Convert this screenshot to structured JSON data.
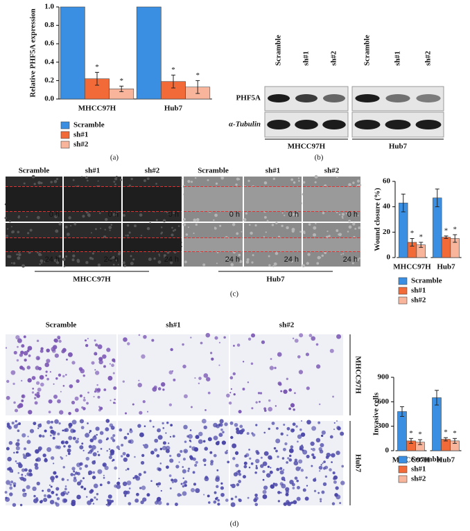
{
  "panel_labels": [
    "(a)",
    "(b)",
    "(c)",
    "(d)"
  ],
  "blot": {
    "rows": [
      "PHF5A",
      "α-Tubulin"
    ],
    "groups": [
      {
        "name": "MHCC97H",
        "lanes": [
          "Scramble",
          "sh#1",
          "sh#2"
        ]
      },
      {
        "name": "Hub7",
        "lanes": [
          "Scramble",
          "sh#1",
          "sh#2"
        ]
      }
    ]
  },
  "wound": {
    "times": [
      "0 h",
      "24 h"
    ],
    "groups": [
      {
        "name": "MHCC97H",
        "columns": [
          "Scramble",
          "sh#1",
          "sh#2"
        ]
      },
      {
        "name": "Hub7",
        "columns": [
          "Scramble",
          "sh#1",
          "sh#2"
        ]
      }
    ]
  },
  "invasion": {
    "columns": [
      "Scramble",
      "sh#1",
      "sh#2"
    ],
    "rows": [
      "MHCC97H",
      "Hub7"
    ]
  },
  "chart_data": [
    {
      "type": "bar",
      "y_label": "Relative PHF5A expression",
      "categories": [
        "MHCC97H",
        "Hub7"
      ],
      "series": [
        {
          "name": "Scramble",
          "color": "#3b8fe2",
          "values": [
            1.0,
            1.0
          ]
        },
        {
          "name": "sh#1",
          "color": "#f26a38",
          "values": [
            0.22,
            0.19
          ],
          "errors": [
            0.07,
            0.07
          ],
          "significance": [
            "*",
            "*"
          ]
        },
        {
          "name": "sh#2",
          "color": "#f8b59b",
          "values": [
            0.11,
            0.13
          ],
          "errors": [
            0.03,
            0.07
          ],
          "significance": [
            "*",
            "*"
          ]
        }
      ],
      "ylim": [
        0,
        1.0
      ],
      "yticks": [
        {
          "value": 0,
          "label": "0.0"
        },
        0.2,
        0.4,
        0.6,
        0.8,
        {
          "value": 1.0,
          "label": "1.0"
        }
      ]
    },
    {
      "type": "bar",
      "y_label": "Wound closure (%)",
      "categories": [
        "MHCC97H",
        "Hub7"
      ],
      "series": [
        {
          "name": "Scramble",
          "color": "#3b8fe2",
          "values": [
            43,
            47
          ],
          "errors": [
            7,
            7
          ]
        },
        {
          "name": "sh#1",
          "color": "#f26a38",
          "values": [
            12,
            16
          ],
          "errors": [
            3,
            1
          ],
          "significance": [
            "*",
            "*"
          ]
        },
        {
          "name": "sh#2",
          "color": "#f8b59b",
          "values": [
            10,
            15
          ],
          "errors": [
            2,
            3
          ],
          "significance": [
            "*",
            "*"
          ]
        }
      ],
      "ylim": [
        0,
        60
      ],
      "yticks": [
        0,
        20,
        40,
        60
      ]
    },
    {
      "type": "bar",
      "y_label": "Invasive cells",
      "categories": [
        "MHCC97H",
        "Hub7"
      ],
      "series": [
        {
          "name": "Scramble",
          "color": "#3b8fe2",
          "values": [
            480,
            650
          ],
          "errors": [
            60,
            90
          ]
        },
        {
          "name": "sh#1",
          "color": "#f26a38",
          "values": [
            120,
            140
          ],
          "errors": [
            30,
            20
          ],
          "significance": [
            "*",
            "*"
          ]
        },
        {
          "name": "sh#2",
          "color": "#f8b59b",
          "values": [
            105,
            120
          ],
          "errors": [
            30,
            30
          ],
          "significance": [
            "*",
            "*"
          ]
        }
      ],
      "ylim": [
        0,
        900
      ],
      "yticks": [
        0,
        300,
        600,
        900
      ]
    }
  ]
}
